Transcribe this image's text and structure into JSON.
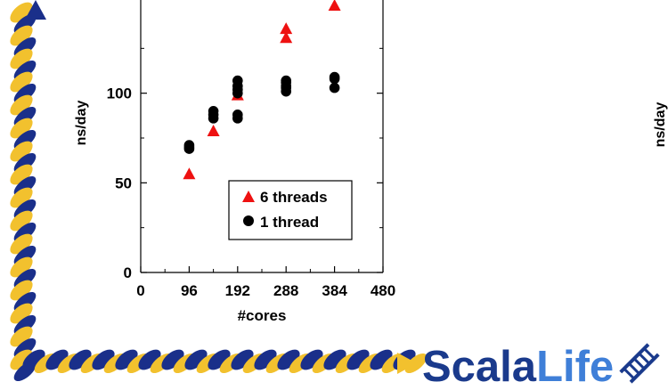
{
  "chart_data": {
    "type": "scatter",
    "xlabel": "#cores",
    "ylabel": "ns/day",
    "xlim": [
      0,
      480
    ],
    "ylim": [
      0,
      150
    ],
    "xticks": [
      0,
      96,
      192,
      288,
      384,
      480
    ],
    "yticks": [
      0,
      50,
      100
    ],
    "grid": false,
    "legend_position": "lower-right",
    "series": [
      {
        "name": "6 threads",
        "marker": "triangle",
        "color": "#ee1111",
        "points": [
          [
            96,
            55
          ],
          [
            144,
            79
          ],
          [
            192,
            99
          ],
          [
            288,
            131
          ],
          [
            288,
            136
          ],
          [
            384,
            149
          ]
        ]
      },
      {
        "name": "1 thread",
        "marker": "circle",
        "color": "#000000",
        "points": [
          [
            96,
            69
          ],
          [
            96,
            70
          ],
          [
            96,
            71
          ],
          [
            144,
            86
          ],
          [
            144,
            88
          ],
          [
            144,
            90
          ],
          [
            192,
            86
          ],
          [
            192,
            88
          ],
          [
            192,
            100
          ],
          [
            192,
            102
          ],
          [
            192,
            104
          ],
          [
            192,
            107
          ],
          [
            288,
            101
          ],
          [
            288,
            103
          ],
          [
            288,
            104
          ],
          [
            288,
            106
          ],
          [
            288,
            107
          ],
          [
            384,
            103
          ],
          [
            384,
            108
          ],
          [
            384,
            109
          ]
        ]
      }
    ]
  },
  "right_panel": {
    "ylabel": "ns/day"
  },
  "branding": {
    "logo_text_dark": "Scala",
    "logo_text_light": "Life",
    "logo_dark_color": "#1a3a8c",
    "logo_light_color": "#3f7fd8",
    "rope_dark_color": "#1a2f8a",
    "rope_light_color": "#f2c12e",
    "icon_name": "ladder-icon"
  }
}
